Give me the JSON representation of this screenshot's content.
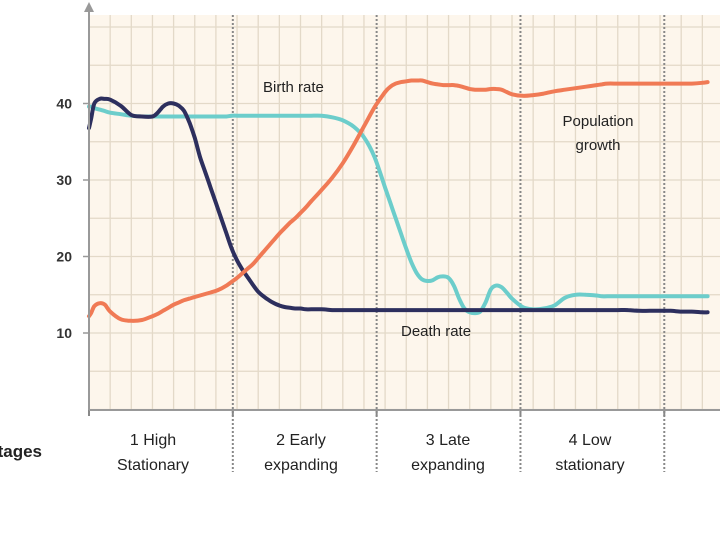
{
  "chart_data": {
    "type": "line",
    "title": "",
    "xlabel": "Stages",
    "ylabel": "",
    "ylim": [
      0,
      50
    ],
    "yticks": [
      10,
      20,
      30,
      40
    ],
    "grid": true,
    "x": [
      0,
      0.1,
      0.25,
      0.5,
      0.75,
      1,
      1.5,
      2,
      2.5,
      3,
      3.25,
      3.5,
      3.75,
      4,
      4.25,
      4.5,
      4.75,
      5,
      5.25,
      5.5,
      5.75,
      6,
      6.25,
      6.5,
      6.75,
      7,
      7.25,
      7.5,
      7.75,
      8,
      8.25,
      8.5,
      8.75,
      9,
      9.25,
      9.5,
      9.75,
      10,
      10.25,
      10.5,
      11,
      11.5,
      12,
      12.5,
      13,
      13.5,
      14,
      14.25,
      14.5,
      14.75,
      15,
      15.25,
      15.5,
      15.75,
      16,
      16.25,
      16.5,
      16.75,
      17,
      17.25,
      17.5,
      17.75,
      18,
      18.25,
      18.5,
      18.75,
      19,
      19.25,
      19.5,
      19.75,
      20,
      20.5,
      21,
      21.5,
      22,
      22.5,
      23,
      23.5,
      24,
      24.25,
      24.5,
      25,
      25.5,
      26,
      26.5,
      27,
      27.5,
      28,
      28.5,
      29,
      29.25
    ],
    "series": [
      {
        "name": "Birth rate",
        "color": "#6ccdcb",
        "values": [
          39.6,
          39.6,
          39.4,
          39.2,
          39,
          38.8,
          38.6,
          38.4,
          38.3,
          38.3,
          38.3,
          38.3,
          38.3,
          38.3,
          38.3,
          38.3,
          38.3,
          38.3,
          38.3,
          38.3,
          38.3,
          38.3,
          38.3,
          38.3,
          38.4,
          38.4,
          38.4,
          38.4,
          38.4,
          38.4,
          38.4,
          38.4,
          38.4,
          38.4,
          38.4,
          38.4,
          38.4,
          38.4,
          38.4,
          38.4,
          38.4,
          38.2,
          37.8,
          37,
          35.6,
          33,
          29,
          27,
          25,
          23,
          21,
          19.2,
          17.8,
          17,
          16.8,
          16.9,
          17.3,
          17.4,
          17.2,
          16.2,
          14.5,
          13.2,
          12.7,
          12.6,
          12.8,
          14,
          15.7,
          16.2,
          16,
          15.3,
          14.5,
          13.4,
          13.1,
          13.2,
          13.6,
          14.6,
          15,
          15,
          14.9,
          14.8,
          14.8,
          14.8,
          14.8,
          14.8,
          14.8,
          14.8,
          14.8,
          14.8,
          14.8,
          14.8,
          14.8
        ]
      },
      {
        "name": "Death rate",
        "color": "#2d2f5e",
        "values": [
          36.8,
          38,
          40,
          40.6,
          40.6,
          40.5,
          39.7,
          38.5,
          38.3,
          38.3,
          38.8,
          39.6,
          40,
          40,
          39.7,
          39,
          37.5,
          35.5,
          33,
          31,
          29,
          27,
          25,
          23,
          21,
          19.5,
          18.3,
          17.3,
          16.3,
          15.4,
          14.8,
          14.3,
          13.9,
          13.6,
          13.4,
          13.3,
          13.2,
          13.2,
          13.1,
          13.1,
          13.1,
          13,
          13,
          13,
          13,
          13,
          13,
          13,
          13,
          13,
          13,
          13,
          13,
          13,
          13,
          13,
          13,
          13,
          13,
          13,
          13,
          13,
          13,
          13,
          13,
          13,
          13,
          13,
          13,
          13,
          13,
          13,
          13,
          13,
          13,
          13,
          13,
          13,
          13,
          13,
          13,
          13,
          13,
          12.9,
          12.9,
          12.9,
          12.9,
          12.8,
          12.8,
          12.7,
          12.7
        ]
      },
      {
        "name": "Population growth",
        "color": "#f07a55",
        "values": [
          12.2,
          12.6,
          13.5,
          13.9,
          13.7,
          12.8,
          11.8,
          11.6,
          11.7,
          12.2,
          12.5,
          12.9,
          13.3,
          13.7,
          14,
          14.3,
          14.5,
          14.7,
          14.9,
          15.1,
          15.3,
          15.5,
          15.8,
          16.2,
          16.7,
          17.2,
          17.8,
          18.4,
          19,
          19.8,
          20.6,
          21.4,
          22.2,
          23,
          23.7,
          24.4,
          25,
          25.7,
          26.4,
          27.2,
          28.7,
          30.3,
          32.2,
          34.5,
          37,
          39.5,
          41.5,
          42.2,
          42.6,
          42.8,
          42.9,
          43,
          43,
          43,
          42.8,
          42.6,
          42.5,
          42.4,
          42.4,
          42.4,
          42.3,
          42.1,
          41.9,
          41.8,
          41.8,
          41.8,
          41.9,
          41.9,
          41.8,
          41.5,
          41.2,
          41,
          41.1,
          41.3,
          41.6,
          41.8,
          42,
          42.2,
          42.4,
          42.5,
          42.6,
          42.6,
          42.6,
          42.6,
          42.6,
          42.6,
          42.6,
          42.6,
          42.6,
          42.7,
          42.8
        ]
      }
    ],
    "annotations": [
      {
        "text": "Birth rate",
        "series": "Birth rate"
      },
      {
        "text": "Death rate",
        "series": "Death rate"
      },
      {
        "text": "Population",
        "series": "Population growth"
      },
      {
        "text": "growth",
        "series": "Population growth"
      }
    ],
    "stages": [
      {
        "line1": "1 High",
        "line2": "Stationary"
      },
      {
        "line1": "2 Early",
        "line2": "expanding"
      },
      {
        "line1": "3 Late",
        "line2": "expanding"
      },
      {
        "line1": "4 Low",
        "line2": "stationary"
      }
    ]
  }
}
